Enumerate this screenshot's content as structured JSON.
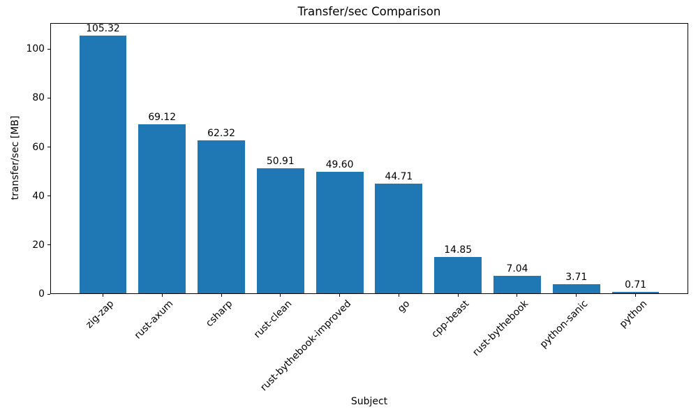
{
  "chart_data": {
    "type": "bar",
    "title": "Transfer/sec Comparison",
    "xlabel": "Subject",
    "ylabel": "transfer/sec [MB]",
    "categories": [
      "zig-zap",
      "rust-axum",
      "csharp",
      "rust-clean",
      "rust-bythebook-improved",
      "go",
      "cpp-beast",
      "rust-bythebook",
      "python-sanic",
      "python"
    ],
    "values": [
      105.32,
      69.12,
      62.32,
      50.91,
      49.6,
      44.71,
      14.85,
      7.04,
      3.71,
      0.71
    ],
    "value_labels": [
      "105.32",
      "69.12",
      "62.32",
      "50.91",
      "49.60",
      "44.71",
      "14.85",
      "7.04",
      "3.71",
      "0.71"
    ],
    "yticks": [
      0,
      20,
      40,
      60,
      80,
      100
    ],
    "ylim": [
      0,
      110.6
    ],
    "bar_width_ratio": 0.8,
    "grid": false,
    "legend": null,
    "colors": {
      "bar": "#1f77b4",
      "text": "#000000",
      "spine": "#000000",
      "background": "#ffffff"
    }
  }
}
